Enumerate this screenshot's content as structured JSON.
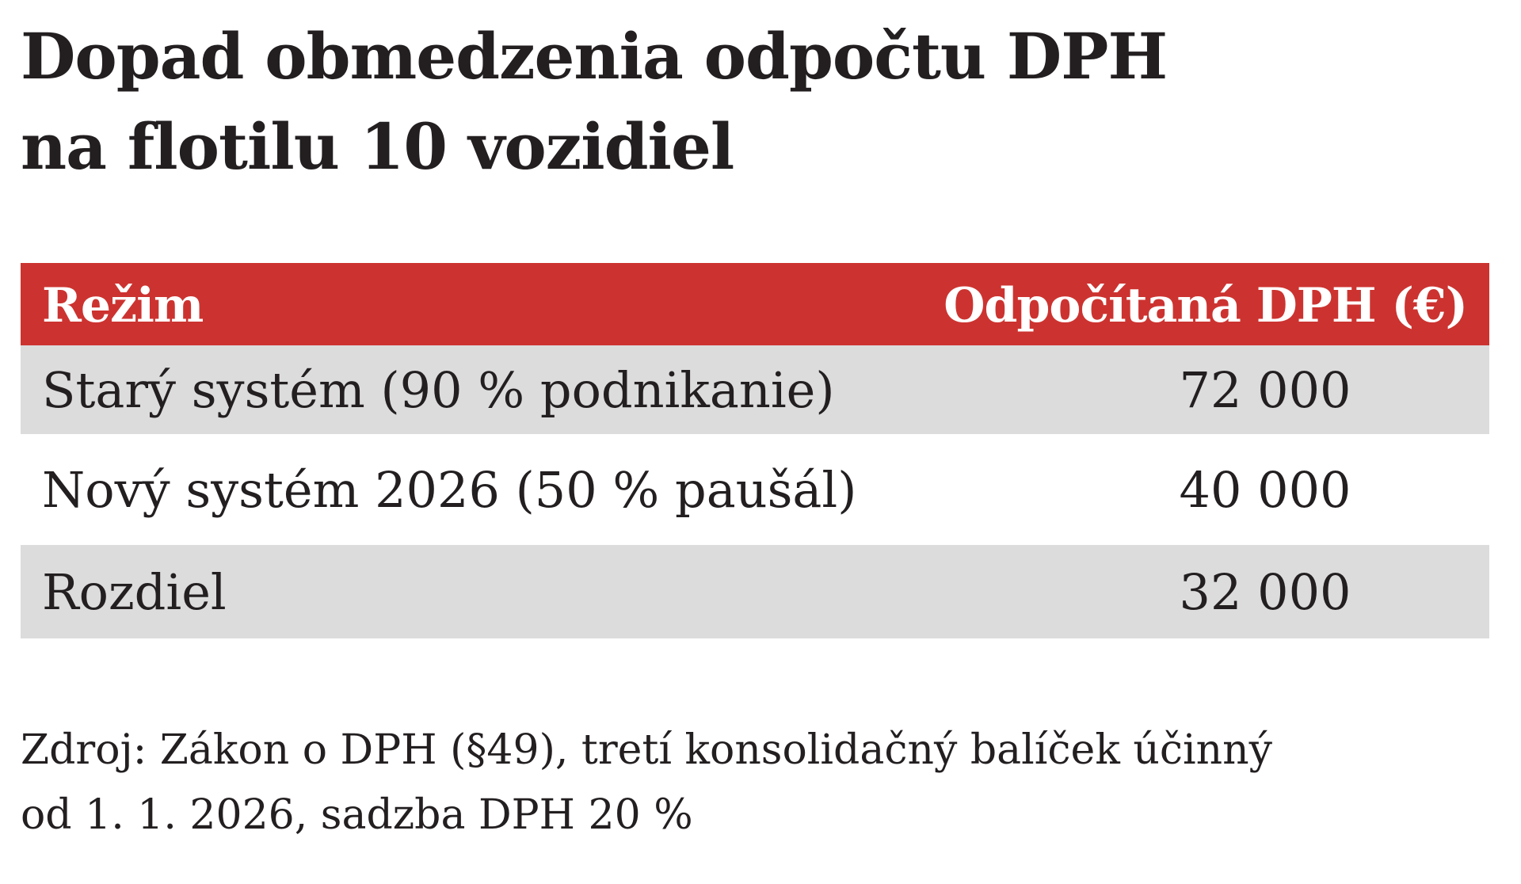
{
  "title": {
    "line1": "Dopad obmedzenia odpočtu DPH",
    "line2": "na flotilu 10 vozidiel"
  },
  "table": {
    "header": {
      "col1": "Režim",
      "col2": "Odpočítaná DPH (€)"
    },
    "rows": [
      {
        "label": "Starý systém (90 % podnikanie)",
        "value": "72 000"
      },
      {
        "label": "Nový systém 2026 (50 % paušál)",
        "value": "40 000"
      },
      {
        "label": "Rozdiel",
        "value": "32 000"
      }
    ]
  },
  "source": {
    "line1": "Zdroj: Zákon o DPH (§49), tretí konsolidačný balíček účinný",
    "line2": "od 1. 1. 2026, sadzba DPH 20 %"
  },
  "colors": {
    "header_background": "#cc3330",
    "shaded_row_background": "#dcdcdc",
    "text": "#231f20"
  }
}
